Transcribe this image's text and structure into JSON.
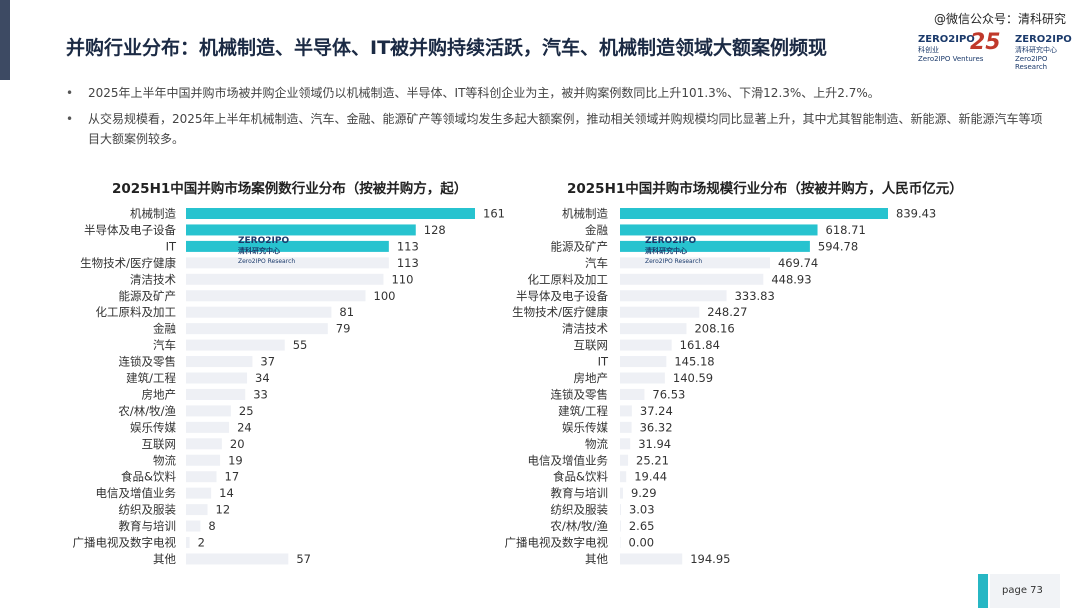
{
  "watermark": "@微信公众号：清科研究",
  "title": "并购行业分布：机械制造、半导体、IT被并购持续活跃，汽车、机械制造领域大额案例频现",
  "logos": {
    "zero_vc_name": "ZERO2IPO",
    "zero_vc_cn": "科创业",
    "zero_vc_en": "Zero2IPO Ventures",
    "anniv": "25",
    "research_name": "ZERO2IPO",
    "research_cn": "清科研究中心",
    "research_en": "Zero2IPO Research"
  },
  "bullets": [
    "2025年上半年中国并购市场被并购企业领域仍以机械制造、半导体、IT等科创企业为主，被并购案例数同比上升101.3%、下滑12.3%、上升2.7%。",
    "从交易规模看，2025年上半年机械制造、汽车、金融、能源矿产等领域均发生多起大额案例，推动相关领域并购规模均同比显著上升，其中尤其智能制造、新能源、新能源汽车等项目大额案例较多。"
  ],
  "colors": {
    "highlight": "#27c3cf",
    "bar": "#eef0f5",
    "title": "#1b2a44"
  },
  "chart_data": [
    {
      "type": "bar",
      "orientation": "horizontal",
      "title": "2025H1中国并购市场案例数行业分布（按被并购方，起）",
      "categories": [
        "机械制造",
        "半导体及电子设备",
        "IT",
        "生物技术/医疗健康",
        "清洁技术",
        "能源及矿产",
        "化工原料及加工",
        "金融",
        "汽车",
        "连锁及零售",
        "建筑/工程",
        "房地产",
        "农/林/牧/渔",
        "娱乐传媒",
        "互联网",
        "物流",
        "食品&饮料",
        "电信及增值业务",
        "纺织及服装",
        "教育与培训",
        "广播电视及数字电视",
        "其他"
      ],
      "values": [
        161,
        128,
        113,
        113,
        110,
        100,
        81,
        79,
        55,
        37,
        34,
        33,
        25,
        24,
        20,
        19,
        17,
        14,
        12,
        8,
        2,
        57
      ],
      "value_labels": [
        "161",
        "128",
        "113",
        "113",
        "110",
        "100",
        "81",
        "79",
        "55",
        "37",
        "34",
        "33",
        "25",
        "24",
        "20",
        "19",
        "17",
        "14",
        "12",
        "8",
        "2",
        "57"
      ],
      "highlighted": [
        0,
        1,
        2
      ],
      "xlim": [
        0,
        161
      ]
    },
    {
      "type": "bar",
      "orientation": "horizontal",
      "title": "2025H1中国并购市场规模行业分布（按被并购方，人民币亿元）",
      "categories": [
        "机械制造",
        "金融",
        "能源及矿产",
        "汽车",
        "化工原料及加工",
        "半导体及电子设备",
        "生物技术/医疗健康",
        "清洁技术",
        "互联网",
        "IT",
        "房地产",
        "连锁及零售",
        "建筑/工程",
        "娱乐传媒",
        "物流",
        "电信及增值业务",
        "食品&饮料",
        "教育与培训",
        "纺织及服装",
        "农/林/牧/渔",
        "广播电视及数字电视",
        "其他"
      ],
      "values": [
        839.43,
        618.71,
        594.78,
        469.74,
        448.93,
        333.83,
        248.27,
        208.16,
        161.84,
        145.18,
        140.59,
        76.53,
        37.24,
        36.32,
        31.94,
        25.21,
        19.44,
        9.29,
        3.03,
        2.65,
        0.0,
        194.95
      ],
      "value_labels": [
        "839.43",
        "618.71",
        "594.78",
        "469.74",
        "448.93",
        "333.83",
        "248.27",
        "208.16",
        "161.84",
        "145.18",
        "140.59",
        "76.53",
        "37.24",
        "36.32",
        "31.94",
        "25.21",
        "19.44",
        "9.29",
        "3.03",
        "2.65",
        "0.00",
        "194.95"
      ],
      "highlighted": [
        0,
        1,
        2
      ],
      "xlim": [
        0,
        839.43
      ]
    }
  ],
  "chart_watermark": {
    "name": "ZERO2IPO",
    "cn": "清科研究中心",
    "en": "Zero2IPO Research"
  },
  "footer": {
    "page": "page  73"
  }
}
